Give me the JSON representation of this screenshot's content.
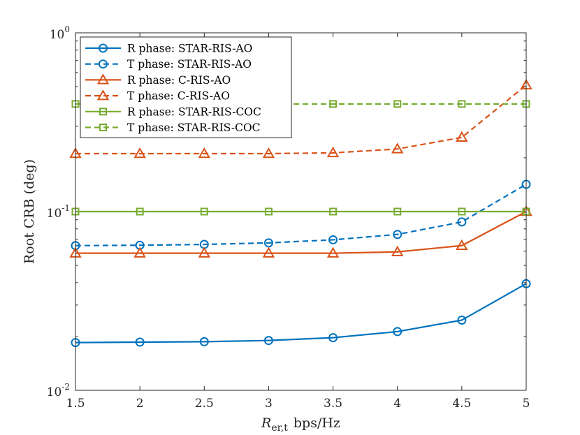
{
  "chart_data": {
    "type": "line",
    "title": "",
    "xlabel_main": "R",
    "xlabel_sub": "er,t",
    "xlabel_unit": "bps/Hz",
    "ylabel": "Root CRB (deg)",
    "x": [
      1.5,
      2,
      2.5,
      3,
      3.5,
      4,
      4.5,
      5
    ],
    "x_tick_labels": [
      "1.5",
      "2",
      "2.5",
      "3",
      "3.5",
      "4",
      "4.5",
      "5"
    ],
    "xlim": [
      1.5,
      5
    ],
    "yscale": "log",
    "ylim": [
      0.01,
      1
    ],
    "y_ticks": [
      {
        "value": 1,
        "base": "10",
        "exp": "0"
      },
      {
        "value": 0.1,
        "base": "10",
        "exp": "-1"
      },
      {
        "value": 0.01,
        "base": "10",
        "exp": "-2"
      }
    ],
    "legend_position": "top-left",
    "series": [
      {
        "name": "R phase: STAR-RIS-AO",
        "color": "#0072BD",
        "dash": "solid",
        "marker": "circle",
        "values": [
          0.0185,
          0.0186,
          0.0187,
          0.019,
          0.0197,
          0.0213,
          0.0247,
          0.0395
        ]
      },
      {
        "name": "T phase: STAR-RIS-AO",
        "color": "#0072BD",
        "dash": "dashed",
        "marker": "circle",
        "values": [
          0.0645,
          0.0648,
          0.0655,
          0.0668,
          0.0695,
          0.0745,
          0.0875,
          0.142
        ]
      },
      {
        "name": "R phase: C-RIS-AO",
        "color": "#D95319",
        "dash": "solid",
        "marker": "triangle",
        "values": [
          0.0585,
          0.0585,
          0.0585,
          0.0585,
          0.0585,
          0.0595,
          0.0645,
          0.1
        ]
      },
      {
        "name": "T phase: C-RIS-AO",
        "color": "#D95319",
        "dash": "dashed",
        "marker": "triangle",
        "values": [
          0.211,
          0.211,
          0.211,
          0.211,
          0.213,
          0.224,
          0.26,
          0.51
        ]
      },
      {
        "name": "R phase: STAR-RIS-COC",
        "color": "#77AC30",
        "dash": "solid",
        "marker": "square",
        "values": [
          0.1,
          0.1,
          0.1,
          0.1,
          0.1,
          0.1,
          0.1,
          0.1
        ]
      },
      {
        "name": "T phase: STAR-RIS-COC",
        "color": "#77AC30",
        "dash": "dashed",
        "marker": "square",
        "values": [
          0.4,
          0.4,
          0.4,
          0.4,
          0.4,
          0.4,
          0.4,
          0.4
        ]
      }
    ]
  }
}
